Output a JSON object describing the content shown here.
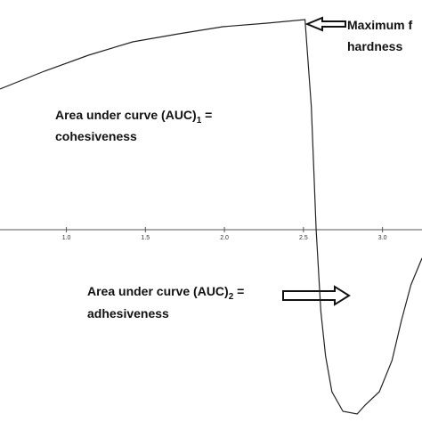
{
  "chart_data": {
    "type": "line",
    "x": [
      0.58,
      0.86,
      1.14,
      1.42,
      1.71,
      1.99,
      2.27,
      2.51,
      2.55,
      2.58,
      2.61,
      2.64,
      2.68,
      2.75,
      2.84,
      2.89,
      2.98,
      3.06,
      3.12,
      3.18,
      3.25
    ],
    "series": [
      {
        "color": "#222222",
        "values": [
          158,
          178,
          196,
          211,
          220,
          228,
          232,
          236,
          138,
          0,
          -92,
          -142,
          -182,
          -204,
          -207,
          -197,
          -182,
          -147,
          -102,
          -62,
          -32
        ]
      }
    ],
    "xlim": [
      0.58,
      3.25
    ],
    "ylim": [
      -216,
      258
    ],
    "xticks": [
      {
        "value": 1.0,
        "label": "1.0"
      },
      {
        "value": 1.5,
        "label": "1.5"
      },
      {
        "value": 2.0,
        "label": "2.0"
      },
      {
        "value": 2.5,
        "label": "2.5"
      },
      {
        "value": 3.0,
        "label": "3.0"
      }
    ],
    "annotations": [
      {
        "line1": "Maximum f",
        "line2": "hardness"
      },
      {
        "text": "Area under curve (AUC)",
        "sub": "1",
        "after": " =",
        "line2": "cohesiveness"
      },
      {
        "text": "Area under curve (AUC)",
        "sub": "2",
        "after": " =",
        "line2": "adhesiveness"
      }
    ]
  }
}
